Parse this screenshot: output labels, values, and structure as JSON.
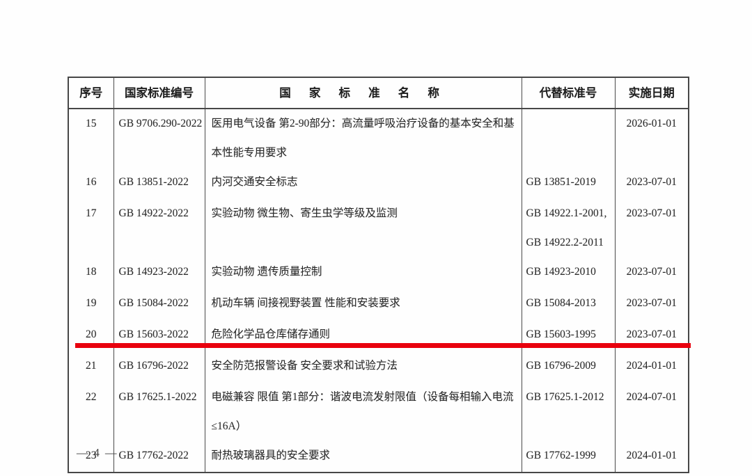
{
  "table": {
    "headers": {
      "seq": "序号",
      "code": "国家标准编号",
      "name": "国 家 标 准 名 称",
      "replaced": "代替标准号",
      "date": "实施日期"
    },
    "rows": [
      {
        "seq": "15",
        "code": "GB 9706.290-2022",
        "name": "医用电气设备 第2-90部分：高流量呼吸治疗设备的基本安全和基本性能专用要求",
        "replaced": [],
        "date": "2026-01-01",
        "highlighted": false
      },
      {
        "seq": "16",
        "code": "GB 13851-2022",
        "name": "内河交通安全标志",
        "replaced": [
          "GB 13851-2019"
        ],
        "date": "2023-07-01",
        "highlighted": false
      },
      {
        "seq": "17",
        "code": "GB 14922-2022",
        "name": "实验动物 微生物、寄生虫学等级及监测",
        "replaced": [
          "GB 14922.1-2001,",
          "GB 14922.2-2011"
        ],
        "date": "2023-07-01",
        "highlighted": false
      },
      {
        "seq": "18",
        "code": "GB 14923-2022",
        "name": "实验动物 遗传质量控制",
        "replaced": [
          "GB 14923-2010"
        ],
        "date": "2023-07-01",
        "highlighted": false
      },
      {
        "seq": "19",
        "code": "GB 15084-2022",
        "name": "机动车辆 间接视野装置 性能和安装要求",
        "replaced": [
          "GB 15084-2013"
        ],
        "date": "2023-07-01",
        "highlighted": false
      },
      {
        "seq": "20",
        "code": "GB 15603-2022",
        "name": "危险化学品仓库储存通则",
        "replaced": [
          "GB 15603-1995"
        ],
        "date": "2023-07-01",
        "highlighted": true
      },
      {
        "seq": "21",
        "code": "GB 16796-2022",
        "name": "安全防范报警设备 安全要求和试验方法",
        "replaced": [
          "GB 16796-2009"
        ],
        "date": "2024-01-01",
        "highlighted": false
      },
      {
        "seq": "22",
        "code": "GB 17625.1-2022",
        "name": "电磁兼容 限值 第1部分：谐波电流发射限值（设备每相输入电流≤16A）",
        "replaced": [
          "GB 17625.1-2012"
        ],
        "date": "2024-07-01",
        "highlighted": false
      },
      {
        "seq": "23",
        "code": "GB 17762-2022",
        "name": "耐热玻璃器具的安全要求",
        "replaced": [
          "GB 17762-1999"
        ],
        "date": "2024-01-01",
        "highlighted": false
      }
    ]
  },
  "annotation": {
    "red_underline_after_row": "20",
    "red_color": "#e8000e"
  },
  "footer": {
    "page_number": "— 4 —"
  }
}
